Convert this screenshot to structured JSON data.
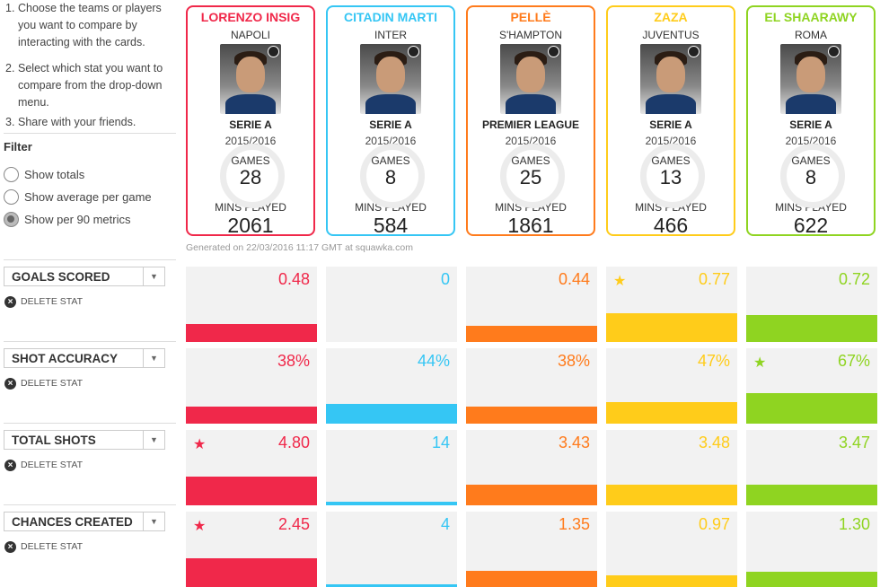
{
  "instructions": [
    {
      "num": "1.",
      "text": "Choose the teams or players you want to compare by interacting with the cards."
    },
    {
      "num": "2.",
      "text": "Select which stat you want to compare from the drop-down menu."
    },
    {
      "num": "3.",
      "text": "Share with your friends."
    }
  ],
  "filter": {
    "title": "Filter",
    "options": [
      {
        "label": "Show totals",
        "checked": false
      },
      {
        "label": "Show average per game",
        "checked": false
      },
      {
        "label": "Show per 90 metrics",
        "checked": true
      }
    ]
  },
  "players": [
    {
      "name": "LORENZO INSIG",
      "team": "NAPOLI",
      "league": "SERIE A",
      "season": "2015/2016",
      "games_label": "GAMES",
      "games": "28",
      "mins_label": "MINS PLAYED",
      "mins": "2061",
      "color": "#f0284a"
    },
    {
      "name": "CITADIN MARTI",
      "team": "INTER",
      "league": "SERIE A",
      "season": "2015/2016",
      "games_label": "GAMES",
      "games": "8",
      "mins_label": "MINS PLAYED",
      "mins": "584",
      "color": "#35c6f4"
    },
    {
      "name": "PELLÈ",
      "team": "S'HAMPTON",
      "league": "PREMIER LEAGUE",
      "season": "2015/2016",
      "games_label": "GAMES",
      "games": "25",
      "mins_label": "MINS PLAYED",
      "mins": "1861",
      "color": "#ff7b1c"
    },
    {
      "name": "ZAZA",
      "team": "JUVENTUS",
      "league": "SERIE A",
      "season": "2015/2016",
      "games_label": "GAMES",
      "games": "13",
      "mins_label": "MINS PLAYED",
      "mins": "466",
      "color": "#ffcc1a"
    },
    {
      "name": "EL SHAARAWY",
      "team": "ROMA",
      "league": "SERIE A",
      "season": "2015/2016",
      "games_label": "GAMES",
      "games": "8",
      "mins_label": "MINS PLAYED",
      "mins": "622",
      "color": "#8fd421"
    }
  ],
  "generated_text": "Generated on 22/03/2016 11:17 GMT at squawka.com",
  "delete_label": "DELETE STAT",
  "stats": [
    {
      "label": "GOALS SCORED",
      "values": [
        "0.48",
        "0",
        "0.44",
        "0.77",
        "0.72"
      ],
      "fills": [
        0.39,
        0.0,
        0.36,
        0.63,
        0.59
      ],
      "star": [
        false,
        false,
        false,
        true,
        false
      ]
    },
    {
      "label": "SHOT ACCURACY",
      "values": [
        "38%",
        "44%",
        "38%",
        "47%",
        "67%"
      ],
      "fills": [
        0.38,
        0.44,
        0.38,
        0.47,
        0.67
      ],
      "star": [
        false,
        false,
        false,
        false,
        true
      ]
    },
    {
      "label": "TOTAL SHOTS",
      "values": [
        "4.80",
        "14",
        "3.43",
        "3.48",
        "3.47"
      ],
      "fills": [
        0.63,
        0.08,
        0.45,
        0.46,
        0.46
      ],
      "star": [
        true,
        false,
        false,
        false,
        false
      ]
    },
    {
      "label": "CHANCES CREATED",
      "values": [
        "2.45",
        "4",
        "1.35",
        "0.97",
        "1.30"
      ],
      "fills": [
        0.63,
        0.04,
        0.35,
        0.25,
        0.33
      ],
      "star": [
        true,
        false,
        false,
        false,
        false
      ]
    }
  ]
}
